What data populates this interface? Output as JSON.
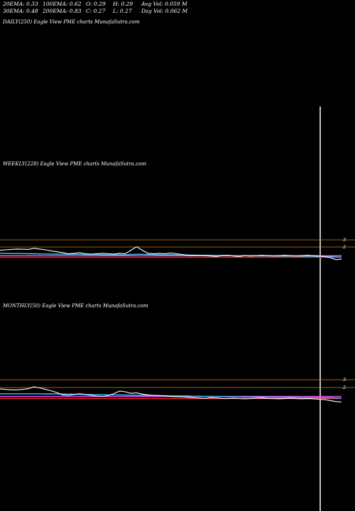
{
  "stats": {
    "ema20": "20EMA: 0.33",
    "ema30": "30EMA: 0.48",
    "ema100": "100EMA: 0.62",
    "ema200": "200EMA: 0.83",
    "open": "O: 0.29",
    "close": "C: 0.27",
    "high": "H: 0.29",
    "low": "L: 0.27",
    "avg_vol": "Avg Vol: 0.059 M",
    "day_vol": "Day Vol: 0.062  M"
  },
  "labels": {
    "daily": "DAILY(250) Eagle   View  PME charts MunafaSutra.com",
    "weekly": "WEEKLY(228) Eagle   View  PME charts MunafaSutra.com",
    "monthly": "MONTHLY(50) Eagle   View  PME charts MunafaSutra.com"
  },
  "colors": {
    "price": "#ffffff",
    "guide": "#c88a14",
    "ema_red": "#ff1f1f",
    "ema_blue": "#3b6cff",
    "ema_pink": "#ff44ff",
    "ema_cyan": "#3fc7ff",
    "cursor": "#ffffff"
  },
  "chart_data": [
    {
      "type": "line",
      "panel": "weekly",
      "title": "WEEKLY(228) Eagle   View  PME charts MunafaSutra.com",
      "yticks": [
        "3",
        "2"
      ],
      "x": [
        0,
        5,
        10,
        15,
        20,
        25,
        30,
        35,
        40,
        45,
        50,
        55,
        60,
        65,
        70,
        75,
        80,
        85,
        90,
        95,
        100,
        105,
        110,
        115,
        120,
        125,
        130,
        135,
        140,
        145,
        150,
        155,
        160,
        165,
        170,
        175,
        180,
        185,
        190,
        195,
        200,
        205,
        210,
        215,
        220,
        225,
        230,
        235,
        240,
        245,
        250,
        255,
        260,
        265,
        270,
        275,
        280,
        285,
        290,
        295,
        300
      ],
      "series": [
        {
          "values": [
            0.78,
            0.8,
            0.82,
            0.84,
            0.83,
            0.82,
            0.88,
            0.84,
            0.8,
            0.74,
            0.7,
            0.66,
            0.6,
            0.62,
            0.65,
            0.6,
            0.58,
            0.6,
            0.62,
            0.6,
            0.58,
            0.62,
            0.6,
            0.78,
            0.96,
            0.78,
            0.62,
            0.6,
            0.62,
            0.6,
            0.64,
            0.6,
            0.56,
            0.52,
            0.5,
            0.52,
            0.5,
            0.48,
            0.46,
            0.5,
            0.52,
            0.48,
            0.46,
            0.5,
            0.48,
            0.5,
            0.52,
            0.5,
            0.48,
            0.5,
            0.52,
            0.5,
            0.48,
            0.5,
            0.52,
            0.5,
            0.48,
            0.46,
            0.4,
            0.3,
            0.32
          ]
        },
        {
          "values": [
            0.62,
            0.62,
            0.61,
            0.61,
            0.61,
            0.6,
            0.6,
            0.59,
            0.59,
            0.58,
            0.58,
            0.58,
            0.57,
            0.57,
            0.57,
            0.56,
            0.56,
            0.56,
            0.55,
            0.55,
            0.55,
            0.55,
            0.55,
            0.56,
            0.57,
            0.57,
            0.56,
            0.56,
            0.55,
            0.55,
            0.55,
            0.54,
            0.54,
            0.53,
            0.53,
            0.52,
            0.52,
            0.52,
            0.51,
            0.51,
            0.51,
            0.5,
            0.5,
            0.5,
            0.5,
            0.49,
            0.49,
            0.49,
            0.49,
            0.48,
            0.48,
            0.48,
            0.48,
            0.47,
            0.47,
            0.47,
            0.46,
            0.46,
            0.45,
            0.44,
            0.43
          ]
        },
        {
          "values": [
            0.5,
            0.5,
            0.5,
            0.5,
            0.5,
            0.5,
            0.5,
            0.5,
            0.5,
            0.5,
            0.5,
            0.5,
            0.5,
            0.5,
            0.5,
            0.5,
            0.5,
            0.5,
            0.5,
            0.5,
            0.5,
            0.5,
            0.5,
            0.5,
            0.5,
            0.5,
            0.5,
            0.5,
            0.5,
            0.5,
            0.5,
            0.5,
            0.5,
            0.5,
            0.5,
            0.5,
            0.5,
            0.5,
            0.5,
            0.5,
            0.5,
            0.5,
            0.5,
            0.5,
            0.5,
            0.5,
            0.5,
            0.5,
            0.5,
            0.5,
            0.5,
            0.5,
            0.5,
            0.5,
            0.5,
            0.5,
            0.5,
            0.5,
            0.5,
            0.5,
            0.5
          ]
        },
        {
          "values": [
            0.42,
            0.42,
            0.42,
            0.42,
            0.42,
            0.42,
            0.42,
            0.42,
            0.42,
            0.42,
            0.42,
            0.42,
            0.42,
            0.42,
            0.42,
            0.42,
            0.42,
            0.42,
            0.42,
            0.42,
            0.42,
            0.42,
            0.42,
            0.42,
            0.42,
            0.42,
            0.42,
            0.42,
            0.42,
            0.42,
            0.42,
            0.42,
            0.42,
            0.42,
            0.42,
            0.42,
            0.42,
            0.42,
            0.42,
            0.42,
            0.42,
            0.42,
            0.42,
            0.42,
            0.42,
            0.42,
            0.42,
            0.42,
            0.42,
            0.42,
            0.42,
            0.42,
            0.42,
            0.42,
            0.42,
            0.42,
            0.42,
            0.42,
            0.42,
            0.42,
            0.42
          ]
        }
      ],
      "guides": [
        3,
        2
      ]
    },
    {
      "type": "line",
      "panel": "monthly",
      "title": "MONTHLY(50) Eagle   View  PME charts MunafaSutra.com",
      "yticks": [
        "3",
        "2"
      ],
      "x": [
        0,
        5,
        10,
        15,
        20,
        25,
        30,
        35,
        40,
        45,
        50,
        55,
        60,
        65,
        70,
        75,
        80,
        85,
        90,
        95,
        100,
        105,
        110,
        115,
        120,
        125,
        130,
        135,
        140,
        145,
        150,
        155,
        160,
        165,
        170,
        175,
        180,
        185,
        190,
        195,
        200,
        205,
        210,
        215,
        220,
        225,
        230,
        235,
        240,
        245,
        250,
        255,
        260,
        265,
        270,
        275,
        280,
        285,
        290,
        295,
        300
      ],
      "series": [
        {
          "values": [
            0.95,
            0.92,
            0.9,
            0.9,
            0.92,
            0.96,
            1.05,
            1.0,
            0.92,
            0.85,
            0.76,
            0.64,
            0.62,
            0.66,
            0.7,
            0.66,
            0.62,
            0.58,
            0.56,
            0.6,
            0.7,
            0.84,
            0.8,
            0.72,
            0.74,
            0.68,
            0.64,
            0.62,
            0.6,
            0.58,
            0.56,
            0.55,
            0.54,
            0.52,
            0.5,
            0.48,
            0.46,
            0.5,
            0.48,
            0.46,
            0.45,
            0.47,
            0.46,
            0.44,
            0.45,
            0.47,
            0.48,
            0.46,
            0.45,
            0.44,
            0.45,
            0.47,
            0.45,
            0.44,
            0.45,
            0.44,
            0.42,
            0.4,
            0.35,
            0.3,
            0.28
          ]
        },
        {
          "values": [
            0.7,
            0.7,
            0.7,
            0.7,
            0.7,
            0.7,
            0.7,
            0.7,
            0.69,
            0.69,
            0.69,
            0.68,
            0.68,
            0.67,
            0.67,
            0.66,
            0.66,
            0.65,
            0.65,
            0.64,
            0.64,
            0.64,
            0.63,
            0.63,
            0.62,
            0.62,
            0.61,
            0.61,
            0.6,
            0.6,
            0.59,
            0.59,
            0.58,
            0.58,
            0.57,
            0.57,
            0.56,
            0.56,
            0.55,
            0.55,
            0.54,
            0.54,
            0.54,
            0.53,
            0.53,
            0.53,
            0.52,
            0.52,
            0.52,
            0.51,
            0.51,
            0.51,
            0.51,
            0.5,
            0.5,
            0.5,
            0.5,
            0.49,
            0.49,
            0.48,
            0.47
          ]
        },
        {
          "values": [
            0.56,
            0.56,
            0.56,
            0.56,
            0.56,
            0.56,
            0.56,
            0.56,
            0.56,
            0.56,
            0.56,
            0.56,
            0.56,
            0.56,
            0.56,
            0.56,
            0.56,
            0.56,
            0.56,
            0.56,
            0.56,
            0.56,
            0.56,
            0.56,
            0.56,
            0.56,
            0.56,
            0.56,
            0.56,
            0.56,
            0.56,
            0.56,
            0.56,
            0.56,
            0.56,
            0.56,
            0.56,
            0.56,
            0.56,
            0.56,
            0.56,
            0.56,
            0.56,
            0.56,
            0.56,
            0.56,
            0.56,
            0.56,
            0.56,
            0.56,
            0.56,
            0.56,
            0.56,
            0.56,
            0.56,
            0.56,
            0.56,
            0.56,
            0.56,
            0.56,
            0.56
          ]
        },
        {
          "values": [
            0.45,
            0.45,
            0.45,
            0.45,
            0.45,
            0.45,
            0.45,
            0.45,
            0.45,
            0.45,
            0.45,
            0.45,
            0.45,
            0.45,
            0.45,
            0.45,
            0.45,
            0.45,
            0.45,
            0.45,
            0.45,
            0.45,
            0.45,
            0.45,
            0.45,
            0.45,
            0.45,
            0.45,
            0.45,
            0.45,
            0.45,
            0.45,
            0.45,
            0.45,
            0.45,
            0.45,
            0.45,
            0.45,
            0.45,
            0.45,
            0.45,
            0.45,
            0.45,
            0.45,
            0.45,
            0.45,
            0.45,
            0.45,
            0.45,
            0.45,
            0.45,
            0.45,
            0.45,
            0.45,
            0.45,
            0.45,
            0.45,
            0.45,
            0.45,
            0.45,
            0.45
          ]
        }
      ],
      "guides": [
        3,
        2
      ]
    }
  ]
}
